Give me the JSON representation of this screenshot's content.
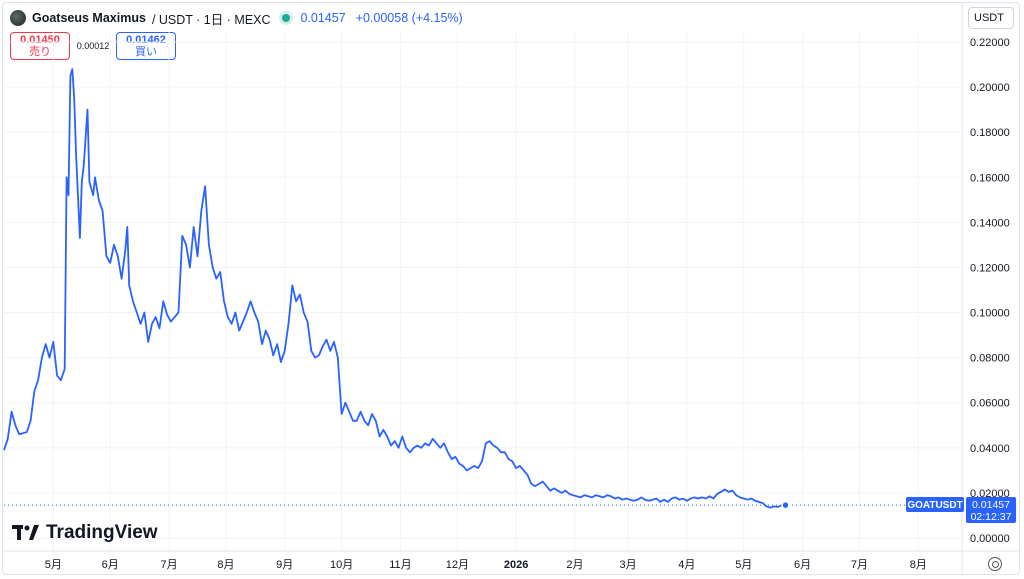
{
  "header": {
    "title": "Goatseus Maximus",
    "subtitle": "/ USDT · 1日 · MEXC",
    "price": "0.01457",
    "change": "+0.00058 (+4.15%)"
  },
  "trade": {
    "sell_price": "0.01450",
    "sell_label": "売り",
    "spread": "0.00012",
    "buy_price": "0.01462",
    "buy_label": "買い"
  },
  "currency": "USDT",
  "logo_text": "TradingView",
  "last_price_tag": {
    "symbol": "GOATUSDT",
    "price": "0.01457",
    "countdown": "02:12:37"
  },
  "colors": {
    "line": "#2962ff",
    "grid": "#f0f3fa",
    "up": "#22ab94",
    "sell": "#f23645"
  },
  "chart_data": {
    "type": "line",
    "y_ticks": [
      "0.22000",
      "0.20000",
      "0.18000",
      "0.16000",
      "0.14000",
      "0.12000",
      "0.10000",
      "0.08000",
      "0.06000",
      "0.04000",
      "0.02000",
      "0.00000"
    ],
    "x_ticks": [
      "5月",
      "6月",
      "7月",
      "8月",
      "9月",
      "10月",
      "11月",
      "12月",
      "2026",
      "2月",
      "3月",
      "4月",
      "5月",
      "6月",
      "7月",
      "8月"
    ],
    "ylim": [
      0,
      0.22
    ],
    "grid": true,
    "x_tick_index": [
      26,
      56,
      87,
      117,
      148,
      178,
      209,
      239,
      270,
      301,
      329,
      360,
      390,
      421,
      451,
      482
    ],
    "x_index_max": 504,
    "points": [
      [
        0,
        0.039
      ],
      [
        2,
        0.044
      ],
      [
        4,
        0.056
      ],
      [
        6,
        0.05
      ],
      [
        8,
        0.046
      ],
      [
        10,
        0.0465
      ],
      [
        12,
        0.047
      ],
      [
        14,
        0.052
      ],
      [
        16,
        0.065
      ],
      [
        18,
        0.07
      ],
      [
        20,
        0.08
      ],
      [
        22,
        0.086
      ],
      [
        24,
        0.08
      ],
      [
        26,
        0.087
      ],
      [
        28,
        0.072
      ],
      [
        30,
        0.07
      ],
      [
        32,
        0.075
      ],
      [
        33,
        0.16
      ],
      [
        34,
        0.152
      ],
      [
        35,
        0.205
      ],
      [
        36,
        0.208
      ],
      [
        37,
        0.195
      ],
      [
        38,
        0.17
      ],
      [
        40,
        0.133
      ],
      [
        41,
        0.158
      ],
      [
        42,
        0.165
      ],
      [
        44,
        0.19
      ],
      [
        45,
        0.158
      ],
      [
        47,
        0.152
      ],
      [
        48,
        0.16
      ],
      [
        50,
        0.15
      ],
      [
        52,
        0.145
      ],
      [
        54,
        0.125
      ],
      [
        56,
        0.122
      ],
      [
        58,
        0.13
      ],
      [
        60,
        0.125
      ],
      [
        62,
        0.115
      ],
      [
        64,
        0.128
      ],
      [
        65,
        0.138
      ],
      [
        66,
        0.112
      ],
      [
        68,
        0.105
      ],
      [
        70,
        0.1
      ],
      [
        72,
        0.095
      ],
      [
        74,
        0.1
      ],
      [
        76,
        0.087
      ],
      [
        78,
        0.095
      ],
      [
        80,
        0.098
      ],
      [
        82,
        0.093
      ],
      [
        84,
        0.105
      ],
      [
        86,
        0.099
      ],
      [
        88,
        0.096
      ],
      [
        90,
        0.098
      ],
      [
        92,
        0.1
      ],
      [
        94,
        0.134
      ],
      [
        96,
        0.13
      ],
      [
        98,
        0.12
      ],
      [
        100,
        0.138
      ],
      [
        102,
        0.125
      ],
      [
        104,
        0.145
      ],
      [
        106,
        0.156
      ],
      [
        108,
        0.13
      ],
      [
        110,
        0.12
      ],
      [
        112,
        0.115
      ],
      [
        114,
        0.118
      ],
      [
        116,
        0.105
      ],
      [
        118,
        0.098
      ],
      [
        120,
        0.095
      ],
      [
        122,
        0.1
      ],
      [
        124,
        0.092
      ],
      [
        126,
        0.096
      ],
      [
        128,
        0.1
      ],
      [
        130,
        0.105
      ],
      [
        132,
        0.1
      ],
      [
        134,
        0.096
      ],
      [
        136,
        0.086
      ],
      [
        138,
        0.092
      ],
      [
        140,
        0.088
      ],
      [
        142,
        0.081
      ],
      [
        144,
        0.086
      ],
      [
        146,
        0.078
      ],
      [
        148,
        0.083
      ],
      [
        150,
        0.095
      ],
      [
        152,
        0.112
      ],
      [
        154,
        0.105
      ],
      [
        156,
        0.108
      ],
      [
        158,
        0.1
      ],
      [
        160,
        0.096
      ],
      [
        162,
        0.083
      ],
      [
        164,
        0.08
      ],
      [
        166,
        0.081
      ],
      [
        168,
        0.085
      ],
      [
        170,
        0.088
      ],
      [
        172,
        0.083
      ],
      [
        174,
        0.087
      ],
      [
        176,
        0.08
      ],
      [
        178,
        0.055
      ],
      [
        180,
        0.06
      ],
      [
        182,
        0.056
      ],
      [
        184,
        0.052
      ],
      [
        186,
        0.052
      ],
      [
        188,
        0.056
      ],
      [
        190,
        0.052
      ],
      [
        192,
        0.05
      ],
      [
        194,
        0.055
      ],
      [
        196,
        0.052
      ],
      [
        198,
        0.045
      ],
      [
        200,
        0.048
      ],
      [
        202,
        0.045
      ],
      [
        204,
        0.041
      ],
      [
        206,
        0.043
      ],
      [
        208,
        0.04
      ],
      [
        210,
        0.045
      ],
      [
        212,
        0.04
      ],
      [
        214,
        0.038
      ],
      [
        216,
        0.04
      ],
      [
        218,
        0.041
      ],
      [
        220,
        0.04
      ],
      [
        222,
        0.042
      ],
      [
        224,
        0.041
      ],
      [
        226,
        0.044
      ],
      [
        228,
        0.042
      ],
      [
        230,
        0.04
      ],
      [
        232,
        0.042
      ],
      [
        234,
        0.038
      ],
      [
        236,
        0.035
      ],
      [
        238,
        0.036
      ],
      [
        240,
        0.033
      ],
      [
        242,
        0.032
      ],
      [
        244,
        0.03
      ],
      [
        246,
        0.031
      ],
      [
        248,
        0.032
      ],
      [
        250,
        0.031
      ],
      [
        252,
        0.034
      ],
      [
        254,
        0.042
      ],
      [
        256,
        0.043
      ],
      [
        258,
        0.041
      ],
      [
        260,
        0.04
      ],
      [
        262,
        0.038
      ],
      [
        264,
        0.038
      ],
      [
        266,
        0.035
      ],
      [
        268,
        0.034
      ],
      [
        270,
        0.031
      ],
      [
        272,
        0.032
      ],
      [
        274,
        0.03
      ],
      [
        276,
        0.028
      ],
      [
        278,
        0.024
      ],
      [
        280,
        0.023
      ],
      [
        282,
        0.024
      ],
      [
        284,
        0.025
      ],
      [
        286,
        0.023
      ],
      [
        288,
        0.021
      ],
      [
        290,
        0.022
      ],
      [
        292,
        0.021
      ],
      [
        294,
        0.02
      ],
      [
        296,
        0.021
      ],
      [
        298,
        0.0195
      ],
      [
        300,
        0.019
      ],
      [
        302,
        0.0185
      ],
      [
        304,
        0.018
      ],
      [
        306,
        0.019
      ],
      [
        308,
        0.0185
      ],
      [
        310,
        0.018
      ],
      [
        312,
        0.019
      ],
      [
        314,
        0.0185
      ],
      [
        316,
        0.018
      ],
      [
        318,
        0.019
      ],
      [
        320,
        0.0185
      ],
      [
        322,
        0.0175
      ],
      [
        324,
        0.018
      ],
      [
        326,
        0.017
      ],
      [
        328,
        0.0175
      ],
      [
        330,
        0.017
      ],
      [
        332,
        0.0165
      ],
      [
        334,
        0.017
      ],
      [
        336,
        0.018
      ],
      [
        338,
        0.017
      ],
      [
        340,
        0.0165
      ],
      [
        342,
        0.017
      ],
      [
        344,
        0.0175
      ],
      [
        346,
        0.016
      ],
      [
        348,
        0.017
      ],
      [
        350,
        0.016
      ],
      [
        352,
        0.0175
      ],
      [
        354,
        0.018
      ],
      [
        356,
        0.017
      ],
      [
        358,
        0.0175
      ],
      [
        360,
        0.0165
      ],
      [
        362,
        0.0175
      ],
      [
        364,
        0.018
      ],
      [
        366,
        0.0175
      ],
      [
        368,
        0.018
      ],
      [
        370,
        0.0175
      ],
      [
        372,
        0.0185
      ],
      [
        374,
        0.0175
      ],
      [
        376,
        0.0195
      ],
      [
        378,
        0.0205
      ],
      [
        380,
        0.0215
      ],
      [
        382,
        0.0205
      ],
      [
        384,
        0.021
      ],
      [
        386,
        0.019
      ],
      [
        388,
        0.018
      ],
      [
        390,
        0.0175
      ],
      [
        392,
        0.017
      ],
      [
        394,
        0.0175
      ],
      [
        396,
        0.0165
      ],
      [
        398,
        0.016
      ],
      [
        400,
        0.0155
      ],
      [
        402,
        0.014
      ],
      [
        404,
        0.0135
      ],
      [
        406,
        0.014
      ],
      [
        408,
        0.0138
      ],
      [
        410,
        0.0145
      ],
      [
        412,
        0.0145
      ]
    ],
    "last_point": [
      412,
      0.01457
    ]
  }
}
